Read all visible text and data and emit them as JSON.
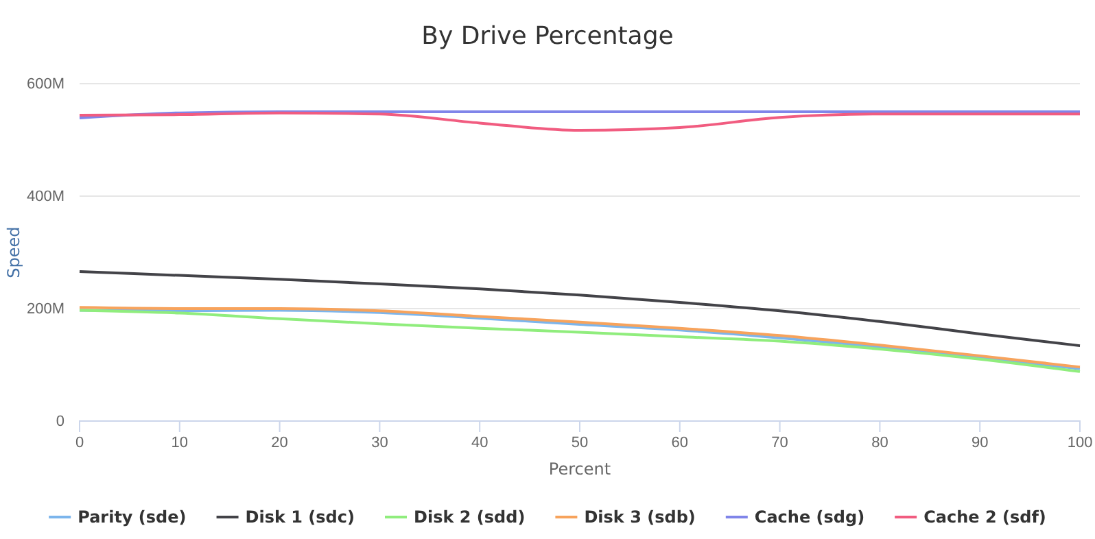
{
  "chart_data": {
    "type": "line",
    "title": "By Drive Percentage",
    "xlabel": "Percent",
    "ylabel": "Speed",
    "x": [
      0,
      10,
      20,
      30,
      40,
      50,
      60,
      70,
      80,
      90,
      100
    ],
    "xlim": [
      0,
      100
    ],
    "xticks": [
      0,
      10,
      20,
      30,
      40,
      50,
      60,
      70,
      80,
      90,
      100
    ],
    "ylim": [
      0,
      600000000
    ],
    "yticks": [
      {
        "value": 0,
        "label": "0"
      },
      {
        "value": 200000000,
        "label": "200M"
      },
      {
        "value": 400000000,
        "label": "400M"
      },
      {
        "value": 600000000,
        "label": "600M"
      }
    ],
    "grid": "y",
    "legend": "bottom",
    "marker": "none",
    "line_style": "solid",
    "series": [
      {
        "name": "Parity (sde)",
        "color": "#7cb5ec",
        "values": [
          197000000,
          196000000,
          197000000,
          193000000,
          183000000,
          172000000,
          162000000,
          148000000,
          132000000,
          113000000,
          93000000
        ]
      },
      {
        "name": "Disk 1 (sdc)",
        "color": "#434348",
        "values": [
          266000000,
          259000000,
          252000000,
          244000000,
          235000000,
          224000000,
          211000000,
          196000000,
          177000000,
          155000000,
          134000000
        ]
      },
      {
        "name": "Disk 2 (sdd)",
        "color": "#90ed7d",
        "values": [
          197000000,
          192000000,
          182000000,
          173000000,
          165000000,
          158000000,
          150000000,
          142000000,
          128000000,
          110000000,
          88000000
        ]
      },
      {
        "name": "Disk 3 (sdb)",
        "color": "#f7a35c",
        "values": [
          202000000,
          200000000,
          200000000,
          196000000,
          186000000,
          176000000,
          165000000,
          152000000,
          135000000,
          116000000,
          96000000
        ]
      },
      {
        "name": "Cache (sdg)",
        "color": "#8085e9",
        "values": [
          539000000,
          548000000,
          550000000,
          550000000,
          550000000,
          550000000,
          550000000,
          550000000,
          550000000,
          550000000,
          550000000
        ]
      },
      {
        "name": "Cache 2 (sdf)",
        "color": "#f15c80",
        "values": [
          544000000,
          545000000,
          548000000,
          546000000,
          530000000,
          517000000,
          522000000,
          540000000,
          546000000,
          546000000,
          546000000
        ]
      }
    ]
  }
}
